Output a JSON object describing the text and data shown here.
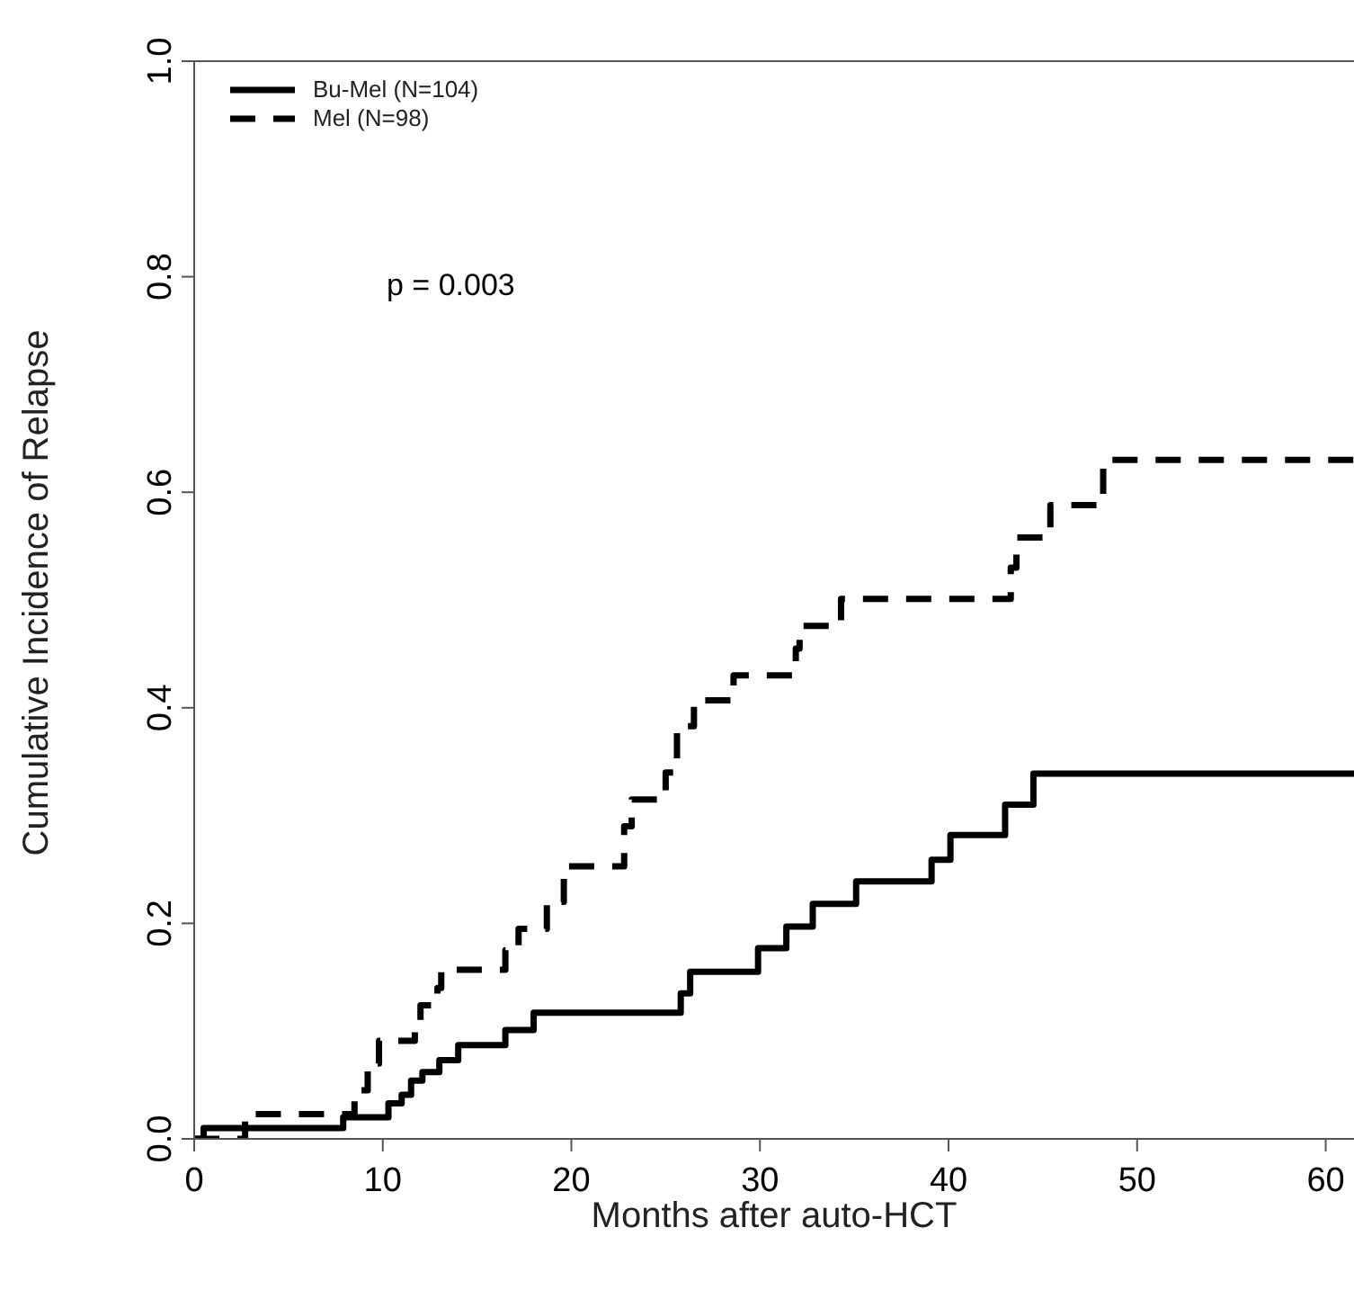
{
  "chart_data": {
    "type": "step",
    "xlabel": "Months after auto-HCT",
    "ylabel": "Cumulative Incidence of Relapse",
    "annotations": [
      "p = 0.003"
    ],
    "xlim": [
      0,
      61.5
    ],
    "xticks": [
      0,
      10,
      20,
      30,
      40,
      50,
      60
    ],
    "ylim": [
      0,
      1
    ],
    "yticks": [
      {
        "value": 0,
        "label": "0.0"
      },
      {
        "value": 0.2,
        "label": "0.2"
      },
      {
        "value": 0.4,
        "label": "0.4"
      },
      {
        "value": 0.6,
        "label": "0.6"
      },
      {
        "value": 0.8,
        "label": "0.8"
      },
      {
        "value": 1,
        "label": "1.0"
      }
    ],
    "legend": "top left",
    "grid": false,
    "marker": "none",
    "series": [
      {
        "name": "Bu-Mel (N=104)",
        "color": "#000000",
        "line_style": "solid",
        "x": [
          0,
          0.5,
          7.9,
          10.3,
          11.0,
          11.5,
          12.1,
          13.0,
          14.0,
          16.5,
          18.0,
          25.8,
          26.3,
          29.9,
          31.4,
          32.8,
          35.1,
          39.1,
          40.1,
          43.0,
          44.5,
          61.5
        ],
        "values": [
          0,
          0.01,
          0.02,
          0.033,
          0.041,
          0.054,
          0.062,
          0.073,
          0.087,
          0.101,
          0.117,
          0.135,
          0.155,
          0.177,
          0.197,
          0.218,
          0.239,
          0.259,
          0.282,
          0.31,
          0.339,
          0.339
        ]
      },
      {
        "name": "Mel (N=98)",
        "color": "#000000",
        "line_style": "dashed",
        "x": [
          0,
          2.7,
          8.5,
          9.2,
          9.8,
          11.7,
          12.0,
          12.9,
          13.1,
          16.5,
          17.2,
          18.7,
          19.6,
          22.8,
          23.2,
          25.0,
          25.6,
          26.5,
          28.6,
          31.9,
          32.1,
          34.3,
          43.3,
          43.6,
          45.4,
          48.2,
          61.5
        ],
        "values": [
          0,
          0.023,
          0.045,
          0.07,
          0.091,
          0.105,
          0.124,
          0.14,
          0.157,
          0.175,
          0.195,
          0.22,
          0.253,
          0.29,
          0.315,
          0.34,
          0.383,
          0.407,
          0.43,
          0.455,
          0.476,
          0.501,
          0.53,
          0.558,
          0.588,
          0.63,
          0.63
        ]
      }
    ]
  }
}
